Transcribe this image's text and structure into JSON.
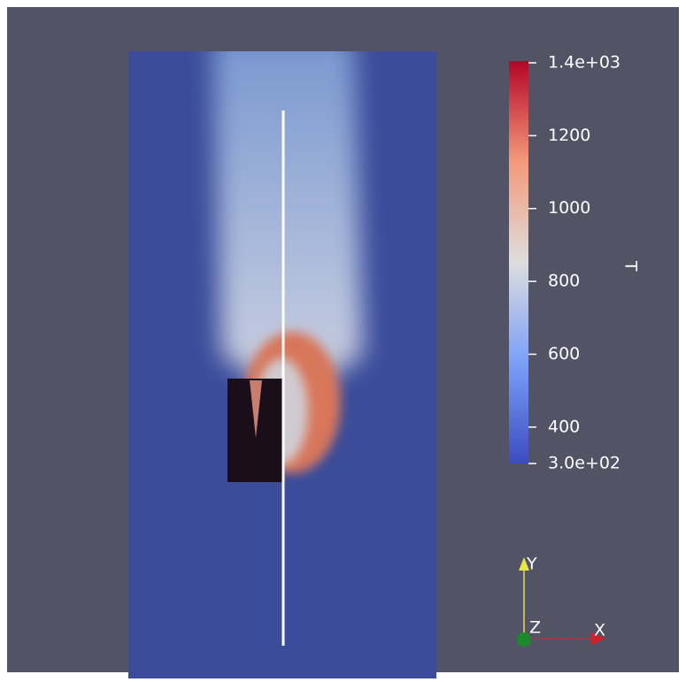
{
  "colorbar": {
    "title": "T",
    "range": [
      300,
      1400
    ],
    "ticks": [
      {
        "value": 1400,
        "label": "1.4e+03"
      },
      {
        "value": 1200,
        "label": "1200"
      },
      {
        "value": 1000,
        "label": "1000"
      },
      {
        "value": 800,
        "label": "800"
      },
      {
        "value": 600,
        "label": "600"
      },
      {
        "value": 400,
        "label": "400"
      },
      {
        "value": 300,
        "label": "3.0e+02"
      }
    ]
  },
  "axes": {
    "y": "Y",
    "z": "Z",
    "x": "X"
  }
}
